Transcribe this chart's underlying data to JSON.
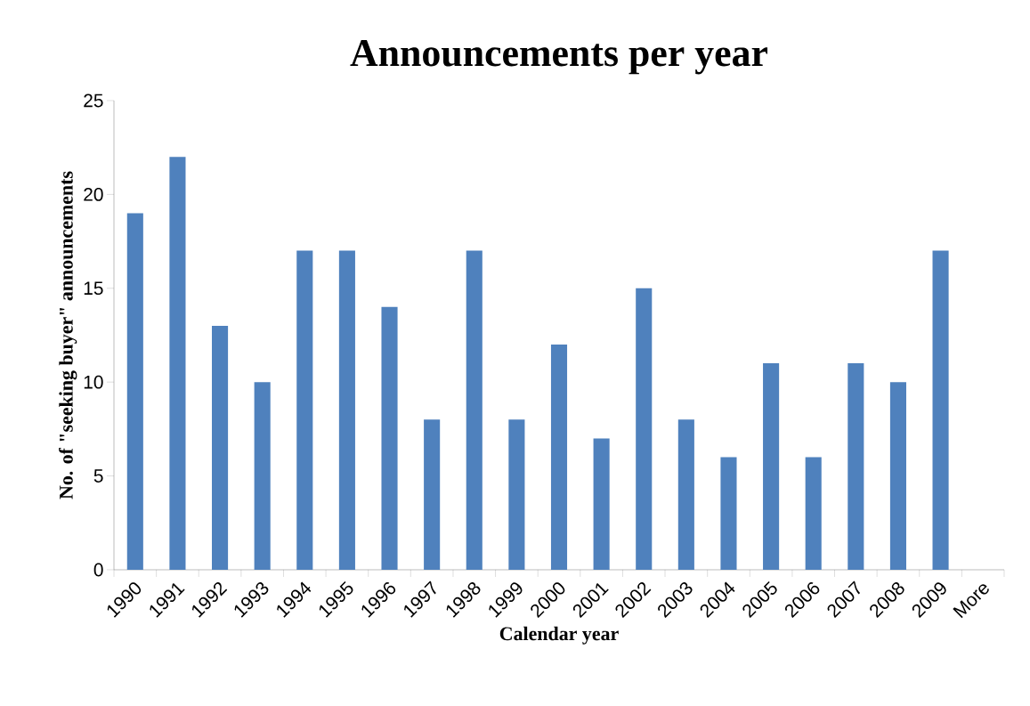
{
  "chart_data": {
    "type": "bar",
    "title": "Announcements per year",
    "xlabel": "Calendar year",
    "ylabel": "No. of \"seeking buyer\" announcements",
    "categories": [
      "1990",
      "1991",
      "1992",
      "1993",
      "1994",
      "1995",
      "1996",
      "1997",
      "1998",
      "1999",
      "2000",
      "2001",
      "2002",
      "2003",
      "2004",
      "2005",
      "2006",
      "2007",
      "2008",
      "2009",
      "More"
    ],
    "values": [
      19,
      22,
      13,
      10,
      17,
      17,
      14,
      8,
      17,
      8,
      12,
      7,
      15,
      8,
      6,
      11,
      6,
      11,
      10,
      17,
      0
    ],
    "color": "#4f81bd",
    "ylim": [
      0,
      25
    ],
    "yticks": [
      0,
      5,
      10,
      15,
      20,
      25
    ],
    "grid": false
  }
}
